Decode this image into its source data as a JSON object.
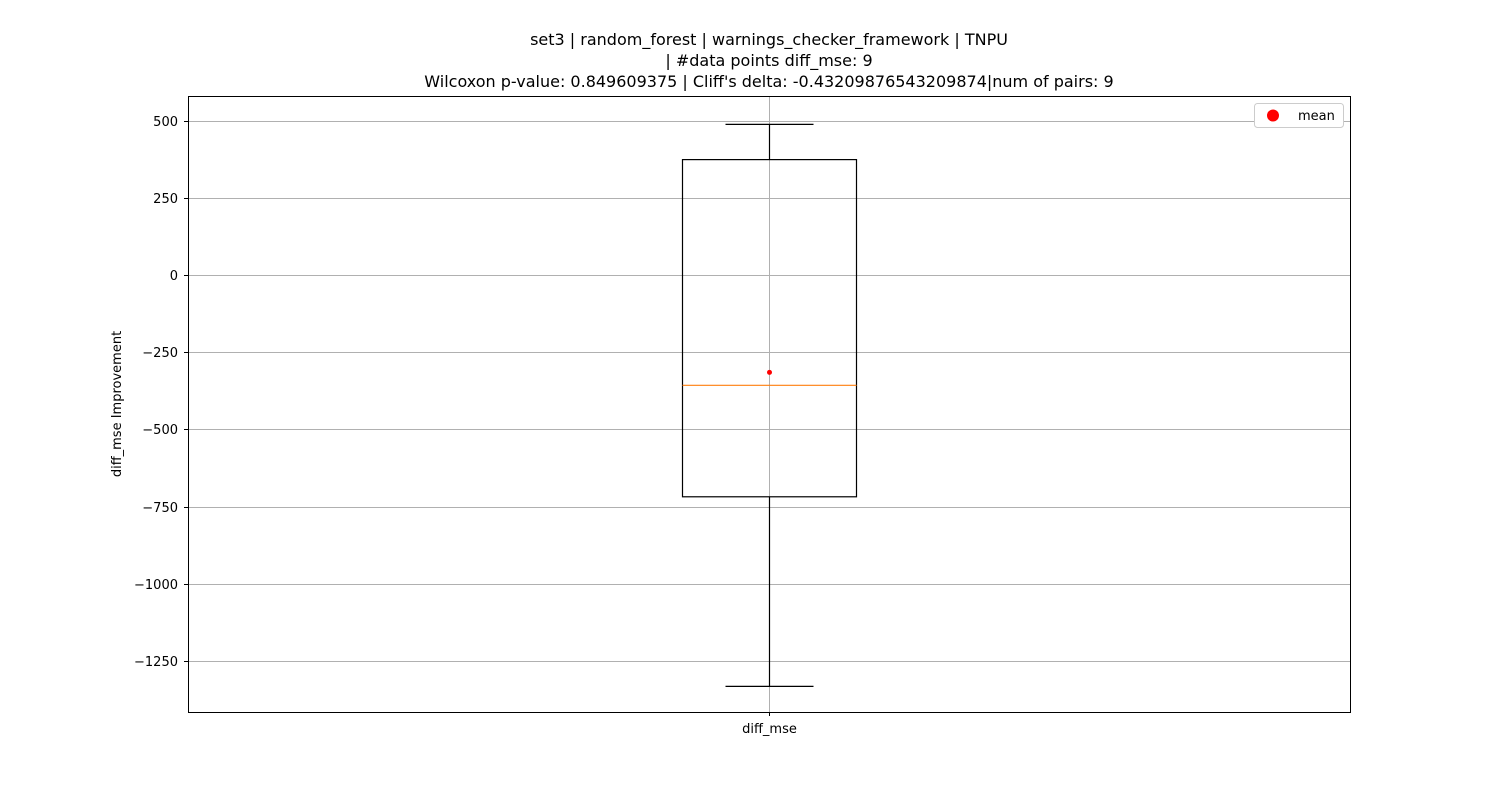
{
  "chart_data": {
    "type": "box",
    "title_lines": [
      "set3 | random_forest | warnings_checker_framework | TNPU",
      "| #data points diff_mse: 9",
      "Wilcoxon p-value: 0.849609375 | Cliff's delta: -0.43209876543209874|num of pairs: 9"
    ],
    "xlabel": "",
    "ylabel": "diff_mse Improvement",
    "categories": [
      "diff_mse"
    ],
    "ylim": [
      -1415,
      580
    ],
    "yticks": [
      500,
      250,
      0,
      -250,
      -500,
      -750,
      -1000,
      -1250
    ],
    "ytick_labels": [
      "500",
      "250",
      "0",
      "−250",
      "−500",
      "−750",
      "−1000",
      "−1250"
    ],
    "grid": true,
    "boxes": [
      {
        "name": "diff_mse",
        "whisker_low": -1332,
        "q1": -718,
        "median": -357,
        "q3": 374,
        "whisker_high": 488,
        "mean": -315
      }
    ],
    "legend": {
      "position": "upper-right",
      "entries": [
        {
          "label": "mean",
          "marker": "circle"
        }
      ]
    },
    "colors": {
      "box": "#000000",
      "median": "#ff7f0e",
      "mean": "#ff0000",
      "grid": "#b0b0b0"
    }
  }
}
